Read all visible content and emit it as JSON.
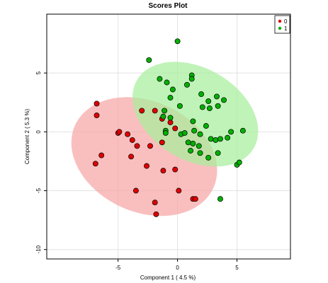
{
  "chart_data": {
    "type": "scatter",
    "title": "Scores Plot",
    "xlabel": "Component 1 ( 4.5 %)",
    "ylabel": "Component 2 ( 5.3 %)",
    "xlim": [
      -11,
      9.5
    ],
    "ylim": [
      -10.8,
      10
    ],
    "x_ticks": [
      -5,
      0,
      5
    ],
    "x_tick_labels": [
      "-5",
      "0",
      "5"
    ],
    "y_ticks": [
      -10,
      -5,
      0,
      5
    ],
    "y_tick_labels": [
      "-10",
      "-5",
      "0",
      "5"
    ],
    "grid": true,
    "legend_position": "top-right",
    "series": [
      {
        "name": "0",
        "color": "#e00000",
        "ellipse_color": "#f7a6a6",
        "points": [
          [
            -6.8,
            2.4
          ],
          [
            -6.8,
            1.4
          ],
          [
            -6.9,
            -2.7
          ],
          [
            -6.4,
            -2.0
          ],
          [
            -5.0,
            -0.1
          ],
          [
            -4.9,
            0.0
          ],
          [
            -4.2,
            -0.2
          ],
          [
            -3.8,
            -0.7
          ],
          [
            -3.9,
            -2.1
          ],
          [
            -3.4,
            -1.2
          ],
          [
            -3.0,
            1.8
          ],
          [
            -2.6,
            -2.9
          ],
          [
            -3.5,
            -5.0
          ],
          [
            -2.3,
            -1.2
          ],
          [
            -1.9,
            1.8
          ],
          [
            -1.3,
            1.1
          ],
          [
            -1.3,
            -0.9
          ],
          [
            -1.2,
            -3.3
          ],
          [
            -0.2,
            0.3
          ],
          [
            -0.2,
            -3.2
          ],
          [
            -0.6,
            0.8
          ],
          [
            0.1,
            -5.0
          ],
          [
            -1.9,
            -6.0
          ],
          [
            -1.8,
            -7.0
          ],
          [
            1.3,
            -5.7
          ],
          [
            1.5,
            -5.7
          ]
        ]
      },
      {
        "name": "1",
        "color": "#00b000",
        "ellipse_color": "#a8ee9c",
        "points": [
          [
            0.0,
            7.7
          ],
          [
            -2.4,
            6.1
          ],
          [
            -1.5,
            4.5
          ],
          [
            -0.9,
            4.2
          ],
          [
            -0.4,
            3.6
          ],
          [
            0.8,
            4.0
          ],
          [
            1.2,
            4.8
          ],
          [
            1.2,
            4.5
          ],
          [
            2.0,
            3.2
          ],
          [
            2.6,
            2.6
          ],
          [
            3.3,
            3.0
          ],
          [
            3.9,
            2.7
          ],
          [
            3.4,
            2.2
          ],
          [
            2.7,
            2.0
          ],
          [
            2.1,
            2.1
          ],
          [
            0.2,
            2.2
          ],
          [
            -0.6,
            2.9
          ],
          [
            -1.1,
            1.8
          ],
          [
            -1.2,
            1.3
          ],
          [
            -0.6,
            1.2
          ],
          [
            -1.0,
            0.1
          ],
          [
            -1.0,
            -0.1
          ],
          [
            0.3,
            -0.2
          ],
          [
            0.6,
            -0.1
          ],
          [
            1.4,
            0.1
          ],
          [
            1.9,
            -0.2
          ],
          [
            2.4,
            0.5
          ],
          [
            2.8,
            -0.6
          ],
          [
            3.2,
            -0.7
          ],
          [
            3.6,
            -0.6
          ],
          [
            4.2,
            -0.5
          ],
          [
            4.5,
            0.0
          ],
          [
            1.3,
            0.9
          ],
          [
            0.9,
            -0.9
          ],
          [
            1.3,
            -1.0
          ],
          [
            1.1,
            -1.6
          ],
          [
            1.8,
            -1.2
          ],
          [
            1.9,
            -1.8
          ],
          [
            2.6,
            -2.2
          ],
          [
            3.4,
            -1.8
          ],
          [
            5.5,
            0.1
          ],
          [
            5.0,
            -2.8
          ],
          [
            5.2,
            -2.6
          ],
          [
            3.6,
            -5.7
          ]
        ]
      }
    ],
    "ellipses": [
      {
        "series": "0",
        "cx": -2.8,
        "cy": -2.1,
        "rx": 6.4,
        "ry": 4.7,
        "angle_deg": -25.0
      },
      {
        "series": "1",
        "cx": 1.5,
        "cy": 1.5,
        "rx": 5.7,
        "ry": 3.9,
        "angle_deg": -31.0
      }
    ]
  }
}
